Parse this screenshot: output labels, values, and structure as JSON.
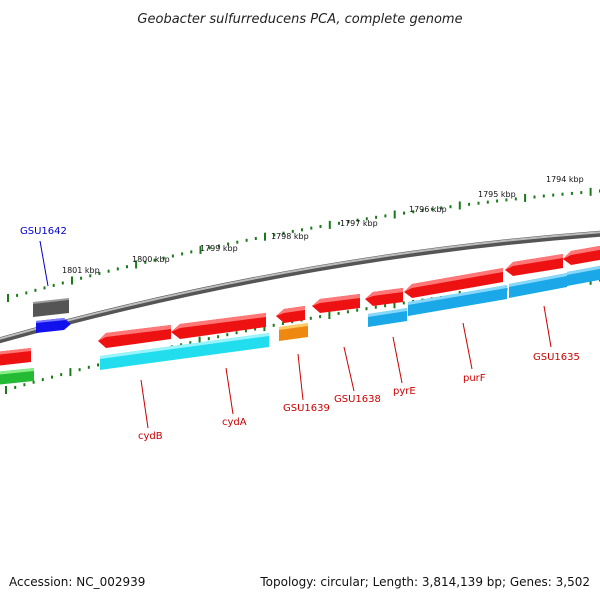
{
  "title": "Geobacter sulfurreducens PCA, complete genome",
  "footer": {
    "accession": "Accession: NC_002939",
    "topology": "Topology: circular; Length: 3,814,139 bp; Genes: 3,502"
  },
  "colors": {
    "backbone": "#8a8a8a",
    "tick": "#1a7a1a",
    "red_gene": "#ee1111",
    "cyan_gene": "#22ddee",
    "blue_gene": "#1aa8e8",
    "orange_gene": "#ee8811",
    "green_gene": "#22bb33",
    "gray_gene": "#555555",
    "navy_gene": "#1111ee",
    "label_red": "#cc0000",
    "label_blue": "#0000cc"
  },
  "scale_labels": [
    "1801 kbp",
    "1800 kbp",
    "1799 kbp",
    "1798 kbp",
    "1797 kbp",
    "1796 kbp",
    "1795 kbp",
    "1794 kbp"
  ],
  "gene_labels": [
    {
      "name": "GSU1642",
      "color": "blue"
    },
    {
      "name": "cydB",
      "color": "red"
    },
    {
      "name": "cydA",
      "color": "red"
    },
    {
      "name": "GSU1639",
      "color": "red"
    },
    {
      "name": "GSU1638",
      "color": "red"
    },
    {
      "name": "pyrE",
      "color": "red"
    },
    {
      "name": "purF",
      "color": "red"
    },
    {
      "name": "GSU1635",
      "color": "red"
    }
  ]
}
